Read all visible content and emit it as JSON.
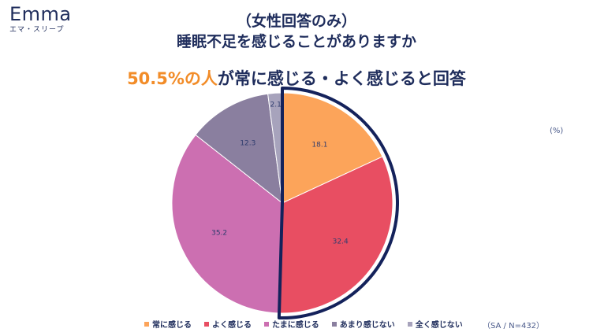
{
  "brand": {
    "name": "Emma",
    "sub": "エマ・スリープ"
  },
  "title_line1": "（女性回答のみ）",
  "title_line2": "睡眠不足を感じることがありますか",
  "headline": {
    "highlight": "50.5%の人",
    "rest": "が常に感じる・よく感じると回答"
  },
  "unit_label": "(%)",
  "sample_note": "（SA / N=432）",
  "chart_data": {
    "type": "pie",
    "categories": [
      "常に感じる",
      "よく感じる",
      "たまに感じる",
      "あまり感じない",
      "全く感じない"
    ],
    "values": [
      18.1,
      32.4,
      35.2,
      12.3,
      2.1
    ],
    "value_labels": [
      "18.1",
      "32.4",
      "35.2",
      "12.3",
      "2.1"
    ],
    "colors": [
      "#fca45a",
      "#e84e62",
      "#cc6fb1",
      "#8a7f9f",
      "#a7a3bc"
    ],
    "start_angle": "12 o'clock",
    "direction": "clockwise",
    "emphasized_slices": [
      "常に感じる",
      "よく感じる"
    ],
    "emphasis_color": "#14225b",
    "legend_position": "bottom"
  }
}
